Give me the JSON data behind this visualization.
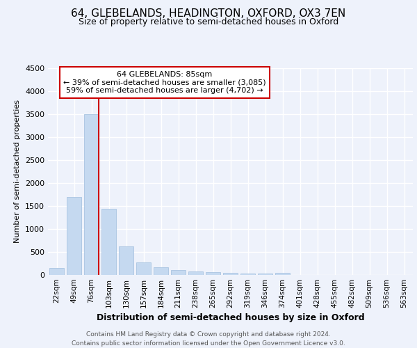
{
  "title_line1": "64, GLEBELANDS, HEADINGTON, OXFORD, OX3 7EN",
  "title_line2": "Size of property relative to semi-detached houses in Oxford",
  "xlabel": "Distribution of semi-detached houses by size in Oxford",
  "ylabel": "Number of semi-detached properties",
  "footer_line1": "Contains HM Land Registry data © Crown copyright and database right 2024.",
  "footer_line2": "Contains public sector information licensed under the Open Government Licence v3.0.",
  "categories": [
    "22sqm",
    "49sqm",
    "76sqm",
    "103sqm",
    "130sqm",
    "157sqm",
    "184sqm",
    "211sqm",
    "238sqm",
    "265sqm",
    "292sqm",
    "319sqm",
    "346sqm",
    "374sqm",
    "401sqm",
    "428sqm",
    "455sqm",
    "482sqm",
    "509sqm",
    "536sqm",
    "563sqm"
  ],
  "values": [
    150,
    1700,
    3500,
    1430,
    620,
    270,
    170,
    100,
    75,
    55,
    45,
    35,
    30,
    40,
    0,
    0,
    0,
    0,
    0,
    0,
    0
  ],
  "bar_color": "#c5d9f0",
  "bar_edge_color": "#a0bedd",
  "property_line_bin": 2,
  "property_label": "64 GLEBELANDS: 85sqm",
  "annotation_smaller": "← 39% of semi-detached houses are smaller (3,085)",
  "annotation_larger": "59% of semi-detached houses are larger (4,702) →",
  "annotation_box_facecolor": "#ffffff",
  "annotation_box_edgecolor": "#cc0000",
  "line_color": "#cc0000",
  "ylim": [
    0,
    4500
  ],
  "yticks": [
    0,
    500,
    1000,
    1500,
    2000,
    2500,
    3000,
    3500,
    4000,
    4500
  ],
  "background_color": "#eef2fb",
  "grid_color": "#ffffff",
  "title_fontsize": 11,
  "subtitle_fontsize": 9,
  "ylabel_fontsize": 8,
  "xlabel_fontsize": 9,
  "tick_fontsize": 8,
  "xtick_fontsize": 7.5,
  "footer_fontsize": 6.5
}
